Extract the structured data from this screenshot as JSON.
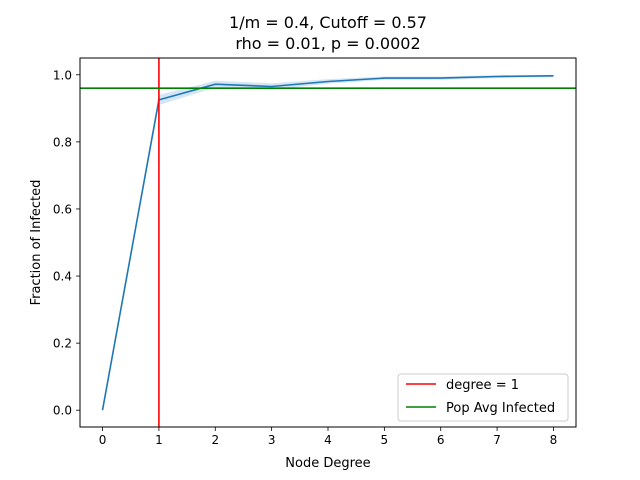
{
  "chart_data": {
    "type": "line",
    "title_line1": "1/m = 0.4, Cutoff = 0.57",
    "title_line2": "rho = 0.01, p = 0.0002",
    "xlabel": "Node Degree",
    "ylabel": "Fraction of Infected",
    "xlim": [
      -0.4,
      8.4
    ],
    "ylim": [
      -0.05,
      1.05
    ],
    "x_ticks": [
      0,
      1,
      2,
      3,
      4,
      5,
      6,
      7,
      8
    ],
    "y_ticks": [
      0.0,
      0.2,
      0.4,
      0.6,
      0.8,
      1.0
    ],
    "x_tick_labels": [
      "0",
      "1",
      "2",
      "3",
      "4",
      "5",
      "6",
      "7",
      "8"
    ],
    "y_tick_labels": [
      "0.0",
      "0.2",
      "0.4",
      "0.6",
      "0.8",
      "1.0"
    ],
    "grid": false,
    "legend_position": "lower-right",
    "series": [
      {
        "x": [
          0,
          1,
          2,
          3,
          4,
          5,
          6,
          7,
          8
        ],
        "values": [
          0.0,
          0.925,
          0.972,
          0.965,
          0.98,
          0.99,
          0.99,
          0.995,
          0.997
        ],
        "band_low": [
          0.0,
          0.91,
          0.962,
          0.955,
          0.973,
          0.985,
          0.985,
          0.99,
          0.993
        ],
        "band_high": [
          0.0,
          0.94,
          0.982,
          0.975,
          0.987,
          0.995,
          0.995,
          0.999,
          1.0
        ],
        "color": "#1f77b4",
        "band_color": "#cfe3f5"
      }
    ],
    "reference_lines": [
      {
        "orientation": "vertical",
        "value": 1,
        "label": "degree = 1",
        "color": "#ff0000"
      },
      {
        "orientation": "horizontal",
        "value": 0.96,
        "label": "Pop Avg Infected",
        "color": "#008000"
      }
    ]
  }
}
